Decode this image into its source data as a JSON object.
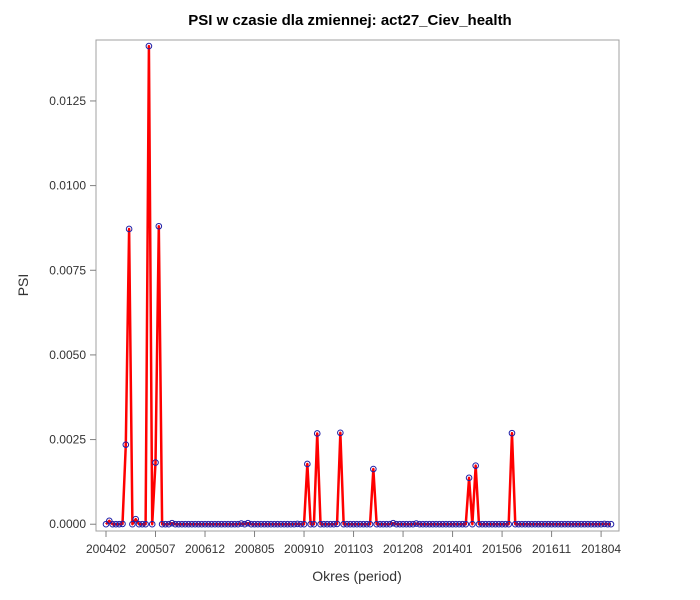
{
  "chart_data": {
    "type": "line",
    "title": "PSI w czasie dla zmiennej: act27_Ciev_health",
    "xlabel": "Okres (period)",
    "ylabel": "PSI",
    "ylim": [
      -0.0002,
      0.0143
    ],
    "yticks": [
      0.0,
      0.0025,
      0.005,
      0.0075,
      0.01,
      0.0125
    ],
    "ytick_labels": [
      "0.0000",
      "0.0025",
      "0.0050",
      "0.0075",
      "0.0100",
      "0.0125"
    ],
    "x_tick_labels": [
      "200402",
      "200507",
      "200612",
      "200805",
      "200910",
      "201103",
      "201208",
      "201401",
      "201506",
      "201611",
      "201804"
    ],
    "x_tick_index": [
      0,
      15,
      30,
      45,
      60,
      75,
      90,
      105,
      120,
      135,
      150
    ],
    "grid": false,
    "legend": "none",
    "line_color": "#ff0000",
    "marker_color": "#1f1fa8",
    "series": [
      {
        "values": [
          0,
          0.0001,
          0,
          0,
          0,
          1e-05,
          0.00235,
          0.00872,
          0,
          0.00015,
          0,
          0,
          0,
          0.01412,
          0,
          0.00182,
          0.0088,
          0,
          0,
          0,
          3e-05,
          0,
          0,
          0,
          0,
          0,
          0,
          0,
          0,
          0,
          0,
          0,
          0,
          0,
          0,
          0,
          0,
          0,
          0,
          0,
          0,
          2e-05,
          0,
          3e-05,
          0,
          0,
          0,
          0,
          0,
          0,
          0,
          0,
          0,
          0,
          0,
          0,
          0,
          0,
          1e-05,
          0,
          0,
          0.00178,
          0,
          0,
          0.00268,
          0,
          0,
          0,
          0,
          0,
          1e-05,
          0.0027,
          0,
          0,
          0,
          0,
          0,
          0,
          0,
          0,
          0,
          0.00163,
          0,
          0,
          0,
          0,
          0,
          3e-05,
          0,
          0,
          0,
          0,
          0,
          0,
          2e-05,
          0,
          0,
          0,
          0,
          0,
          0,
          0,
          0,
          0,
          0,
          0,
          0,
          0,
          0,
          0,
          0.00137,
          0,
          0.00173,
          0,
          0,
          0,
          0,
          0,
          0,
          0,
          0,
          0,
          0,
          0.00269,
          0,
          0,
          0,
          0,
          0,
          0,
          0,
          0,
          0,
          0,
          0,
          0,
          0,
          0,
          0,
          0,
          0,
          0,
          0,
          0,
          0,
          0,
          0,
          0,
          0,
          0,
          0,
          1e-05,
          0,
          0
        ]
      }
    ]
  }
}
